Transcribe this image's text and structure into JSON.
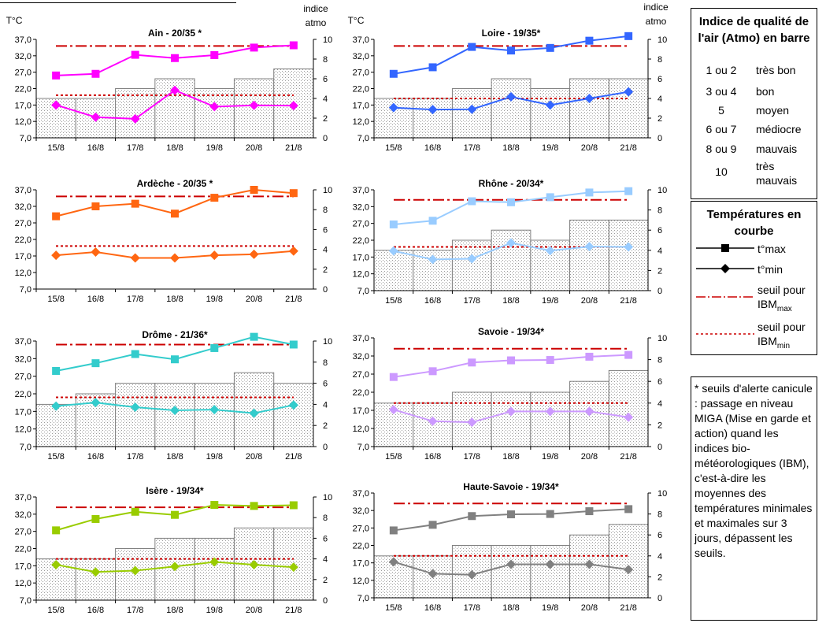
{
  "dates": [
    "15/8",
    "16/8",
    "17/8",
    "18/8",
    "19/8",
    "20/8",
    "21/8"
  ],
  "left_axis_unit": "T°C",
  "right_axis_title_line1": "indice",
  "right_axis_title_line2": "atmo",
  "colors": {
    "threshold": "#cc0000",
    "bar_border": "#808080",
    "bar_hatch": "#bdbdbd"
  },
  "chart_data": [
    {
      "type": "line",
      "title": "Ain - 20/35 *",
      "color": "#ff00ff",
      "categories": [
        "15/8",
        "16/8",
        "17/8",
        "18/8",
        "19/8",
        "20/8",
        "21/8"
      ],
      "series": [
        {
          "values": [
            26.0,
            26.5,
            32.3,
            31.3,
            32.2,
            34.5,
            35.2
          ]
        },
        {
          "values": [
            17.0,
            13.3,
            12.8,
            21.5,
            16.5,
            16.9,
            16.8
          ]
        }
      ],
      "atmo": [
        4,
        4,
        5,
        6,
        5,
        6,
        7
      ],
      "thresholds": {
        "max": 35,
        "min": 20
      },
      "ylim": [
        7,
        37
      ],
      "yticks": [
        "7,0",
        "12,0",
        "17,0",
        "22,0",
        "27,0",
        "32,0",
        "37,0"
      ],
      "y2lim": [
        0,
        10
      ],
      "y2ticks": [
        "0",
        "2",
        "4",
        "6",
        "8",
        "10"
      ]
    },
    {
      "type": "line",
      "title": "Loire - 19/35*",
      "color": "#3366ff",
      "categories": [
        "15/8",
        "16/8",
        "17/8",
        "18/8",
        "19/8",
        "20/8",
        "21/8"
      ],
      "series": [
        {
          "values": [
            26.5,
            28.5,
            34.7,
            33.6,
            34.4,
            36.6,
            38.0
          ]
        },
        {
          "values": [
            16.2,
            15.6,
            15.7,
            19.5,
            17.0,
            19.0,
            21.0
          ]
        }
      ],
      "atmo": [
        4,
        4,
        5,
        6,
        5,
        6,
        6
      ],
      "thresholds": {
        "max": 35,
        "min": 19
      },
      "ylim": [
        7,
        37
      ],
      "yticks": [
        "7,0",
        "12,0",
        "17,0",
        "22,0",
        "27,0",
        "32,0",
        "37,0"
      ],
      "y2lim": [
        0,
        10
      ],
      "y2ticks": [
        "0",
        "2",
        "4",
        "6",
        "8",
        "10"
      ]
    },
    {
      "type": "line",
      "title": "Ardèche - 20/35 *",
      "color": "#ff6611",
      "categories": [
        "15/8",
        "16/8",
        "17/8",
        "18/8",
        "19/8",
        "20/8",
        "21/8"
      ],
      "series": [
        {
          "values": [
            29.0,
            32.0,
            32.8,
            29.8,
            34.6,
            37.0,
            36.0
          ]
        },
        {
          "values": [
            17.2,
            18.2,
            16.4,
            16.4,
            17.2,
            17.5,
            18.5
          ]
        }
      ],
      "atmo": [],
      "thresholds": {
        "max": 35,
        "min": 20
      },
      "ylim": [
        7,
        37
      ],
      "yticks": [
        "7,0",
        "12,0",
        "17,0",
        "22,0",
        "27,0",
        "32,0",
        "37,0"
      ],
      "y2lim": [
        0,
        10
      ],
      "y2ticks": [
        "0",
        "2",
        "4",
        "6",
        "8",
        "10"
      ]
    },
    {
      "type": "line",
      "title": "Rhône - 20/34*",
      "color": "#99ccff",
      "categories": [
        "15/8",
        "16/8",
        "17/8",
        "18/8",
        "19/8",
        "20/8",
        "21/8"
      ],
      "series": [
        {
          "values": [
            26.7,
            27.8,
            33.6,
            33.3,
            34.8,
            36.2,
            36.6
          ]
        },
        {
          "values": [
            18.8,
            16.3,
            16.5,
            21.2,
            18.9,
            20.1,
            20.0
          ]
        }
      ],
      "atmo": [
        4,
        4,
        5,
        6,
        5,
        7,
        7
      ],
      "thresholds": {
        "max": 34,
        "min": 20
      },
      "ylim": [
        7,
        37
      ],
      "yticks": [
        "7,0",
        "12,0",
        "17,0",
        "22,0",
        "27,0",
        "32,0",
        "37,0"
      ],
      "y2lim": [
        0,
        10
      ],
      "y2ticks": [
        "0",
        "2",
        "4",
        "6",
        "8",
        "10"
      ]
    },
    {
      "type": "line",
      "title": "Drôme - 21/36*",
      "color": "#33cccc",
      "categories": [
        "15/8",
        "16/8",
        "17/8",
        "18/8",
        "19/8",
        "20/8",
        "21/8"
      ],
      "series": [
        {
          "values": [
            28.5,
            30.7,
            33.3,
            31.8,
            35.0,
            38.2,
            36.0
          ]
        },
        {
          "values": [
            18.5,
            19.5,
            18.2,
            17.3,
            17.5,
            16.5,
            18.8
          ]
        }
      ],
      "atmo": [
        4,
        5,
        6,
        6,
        6,
        7,
        6
      ],
      "thresholds": {
        "max": 36,
        "min": 21
      },
      "ylim": [
        7,
        37
      ],
      "yticks": [
        "7,0",
        "12,0",
        "17,0",
        "22,0",
        "27,0",
        "32,0",
        "37,0"
      ],
      "y2lim": [
        0,
        10
      ],
      "y2ticks": [
        "0",
        "2",
        "4",
        "6",
        "8",
        "10"
      ]
    },
    {
      "type": "line",
      "title": "Savoie - 19/34*",
      "color": "#cc99ff",
      "categories": [
        "15/8",
        "16/8",
        "17/8",
        "18/8",
        "19/8",
        "20/8",
        "21/8"
      ],
      "series": [
        {
          "values": [
            26.2,
            27.8,
            30.2,
            30.8,
            30.9,
            31.8,
            32.3
          ]
        },
        {
          "values": [
            17.2,
            14.0,
            13.7,
            16.7,
            16.7,
            16.7,
            15.1
          ]
        }
      ],
      "atmo": [
        4,
        4,
        5,
        5,
        5,
        6,
        7
      ],
      "thresholds": {
        "max": 34,
        "min": 19
      },
      "ylim": [
        7,
        37
      ],
      "yticks": [
        "7,0",
        "12,0",
        "17,0",
        "22,0",
        "27,0",
        "32,0",
        "37,0"
      ],
      "y2lim": [
        0,
        10
      ],
      "y2ticks": [
        "0",
        "2",
        "4",
        "6",
        "8",
        "10"
      ]
    },
    {
      "type": "line",
      "title": "Isère - 19/34*",
      "color": "#99cc00",
      "categories": [
        "15/8",
        "16/8",
        "17/8",
        "18/8",
        "19/8",
        "20/8",
        "21/8"
      ],
      "series": [
        {
          "values": [
            27.3,
            30.6,
            32.7,
            31.8,
            34.7,
            34.4,
            34.6
          ]
        },
        {
          "values": [
            17.3,
            15.2,
            15.6,
            16.8,
            18.1,
            17.3,
            16.6
          ]
        }
      ],
      "atmo": [
        4,
        4,
        5,
        6,
        6,
        7,
        7
      ],
      "thresholds": {
        "max": 34,
        "min": 19
      },
      "ylim": [
        7,
        37
      ],
      "yticks": [
        "7,0",
        "12,0",
        "17,0",
        "22,0",
        "27,0",
        "32,0",
        "37,0"
      ],
      "y2lim": [
        0,
        10
      ],
      "y2ticks": [
        "0",
        "2",
        "4",
        "6",
        "8",
        "10"
      ]
    },
    {
      "type": "line",
      "title": "Haute-Savoie - 19/34*",
      "color": "#808080",
      "categories": [
        "15/8",
        "16/8",
        "17/8",
        "18/8",
        "19/8",
        "20/8",
        "21/8"
      ],
      "series": [
        {
          "values": [
            26.3,
            27.9,
            30.4,
            30.9,
            31.0,
            31.8,
            32.4
          ]
        },
        {
          "values": [
            17.3,
            13.9,
            13.6,
            16.6,
            16.6,
            16.6,
            15.1
          ]
        }
      ],
      "atmo": [
        4,
        4,
        5,
        5,
        5,
        6,
        7
      ],
      "thresholds": {
        "max": 34,
        "min": 19
      },
      "ylim": [
        7,
        37
      ],
      "yticks": [
        "7,0",
        "12,0",
        "17,0",
        "22,0",
        "27,0",
        "32,0",
        "37,0"
      ],
      "y2lim": [
        0,
        10
      ],
      "y2ticks": [
        "0",
        "2",
        "4",
        "6",
        "8",
        "10"
      ]
    }
  ],
  "aqi_legend": {
    "title": "Indice de qualité de l'air (Atmo) en barre",
    "rows": [
      {
        "key": "1 ou 2",
        "label": "très bon"
      },
      {
        "key": "3 ou 4",
        "label": "bon"
      },
      {
        "key": "5",
        "label": "moyen"
      },
      {
        "key": "6 ou 7",
        "label": "médiocre"
      },
      {
        "key": "8 ou 9",
        "label": "mauvais"
      },
      {
        "key": "10",
        "label": "très mauvais"
      }
    ]
  },
  "temp_legend": {
    "title": "Températures en courbe",
    "tmax": "t°max",
    "tmin": "t°min",
    "seuil_max_text": "seuil pour",
    "seuil_max_sym": "IBM",
    "seuil_max_sub": "max",
    "seuil_min_text": "seuil pour",
    "seuil_min_sym": "IBM",
    "seuil_min_sub": "min"
  },
  "note": "* seuils d'alerte canicule : passage en niveau MIGA (Mise en garde et action) quand les indices bio-météorologiques (IBM), c'est-à-dire les moyennes des températures minimales et maximales sur 3 jours, dépassent les seuils."
}
